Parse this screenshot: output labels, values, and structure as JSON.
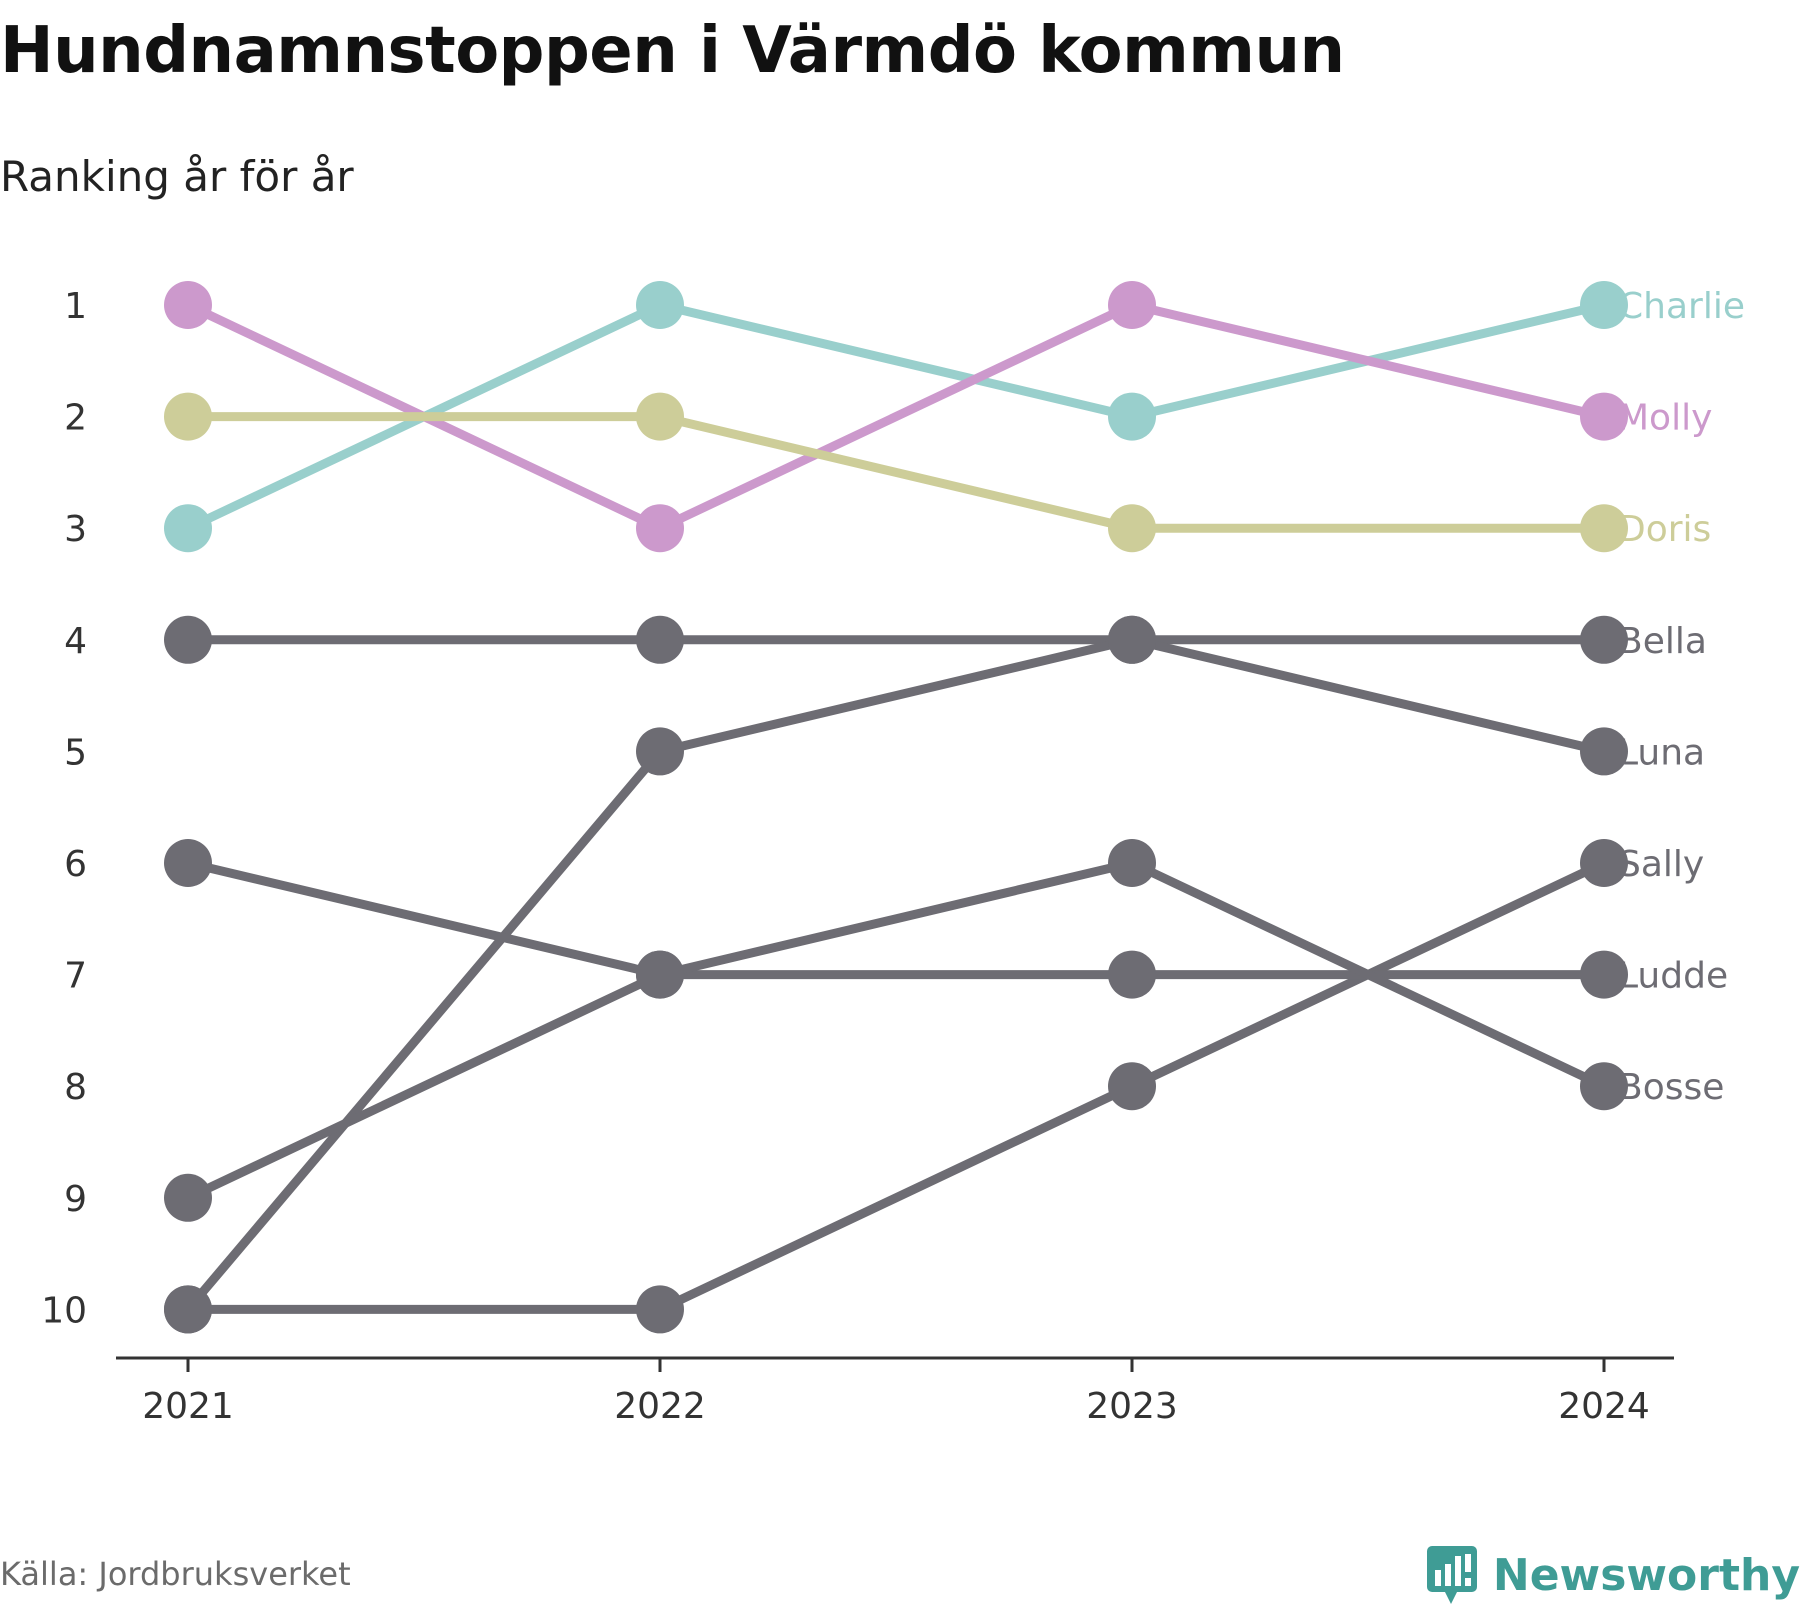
{
  "chart_data": {
    "type": "line",
    "title": "Hundnamnstoppen i Värmdö kommun",
    "subtitle": "Ranking år för år",
    "x": [
      "2021",
      "2022",
      "2023",
      "2024"
    ],
    "ylim": [
      10,
      1
    ],
    "y_ticks": [
      "1",
      "2",
      "3",
      "4",
      "5",
      "6",
      "7",
      "8",
      "9",
      "10"
    ],
    "grid": false,
    "series": [
      {
        "name": "Charlie",
        "values": [
          3,
          1,
          2,
          1
        ],
        "color": "#99cfcc"
      },
      {
        "name": "Molly",
        "values": [
          1,
          3,
          1,
          2
        ],
        "color": "#cc99cc"
      },
      {
        "name": "Doris",
        "values": [
          2,
          2,
          3,
          3
        ],
        "color": "#cdcd99"
      },
      {
        "name": "Bella",
        "values": [
          4,
          4,
          4,
          4
        ],
        "color": "#6d6c73"
      },
      {
        "name": "Luna",
        "values": [
          10,
          5,
          4,
          5
        ],
        "color": "#6d6c73"
      },
      {
        "name": "Sally",
        "values": [
          10,
          10,
          8,
          6
        ],
        "color": "#6d6c73"
      },
      {
        "name": "Ludde",
        "values": [
          6,
          7,
          7,
          7
        ],
        "color": "#6d6c73"
      },
      {
        "name": "Bosse",
        "values": [
          9,
          7,
          6,
          8
        ],
        "color": "#6d6c73"
      }
    ]
  },
  "footer": {
    "source": "Källa: Jordbruksverket",
    "brand": "Newsworthy",
    "brand_color": "#3f9c95",
    "logo_icon": "bar-chart-speech-bubble-icon"
  }
}
